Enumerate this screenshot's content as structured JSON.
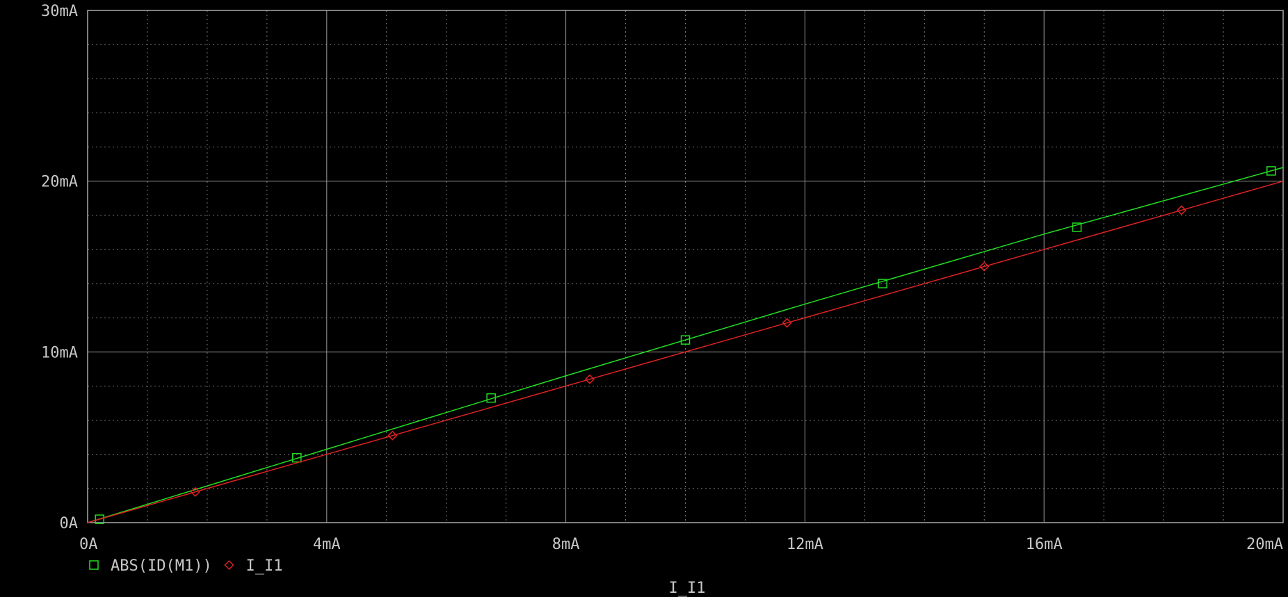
{
  "chart_data": {
    "type": "line",
    "xlabel": "I_I1",
    "ylabel": "",
    "xlim": [
      0,
      20
    ],
    "ylim": [
      0,
      30
    ],
    "x_unit": "mA",
    "y_unit": "mA",
    "x_ticks": [
      {
        "value": 0,
        "label": "0A"
      },
      {
        "value": 4,
        "label": "4mA"
      },
      {
        "value": 8,
        "label": "8mA"
      },
      {
        "value": 12,
        "label": "12mA"
      },
      {
        "value": 16,
        "label": "16mA"
      },
      {
        "value": 20,
        "label": "20mA"
      }
    ],
    "y_ticks": [
      {
        "value": 0,
        "label": "0A"
      },
      {
        "value": 10,
        "label": "10mA"
      },
      {
        "value": 20,
        "label": "20mA"
      },
      {
        "value": 30,
        "label": "30mA"
      }
    ],
    "grid": true,
    "legend_position": "bottom-left",
    "series": [
      {
        "name": "ABS(ID(M1))",
        "color": "#22dd22",
        "marker": "square",
        "x": [
          0,
          4,
          8,
          12,
          16,
          20
        ],
        "y": [
          0,
          4.3,
          8.6,
          12.8,
          16.9,
          20.8
        ],
        "marker_x": [
          0.2,
          3.5,
          6.75,
          10.0,
          13.3,
          16.55,
          19.8
        ],
        "marker_y": [
          0.2,
          3.8,
          7.3,
          10.7,
          14.0,
          17.3,
          20.6
        ]
      },
      {
        "name": "I_I1",
        "color": "#dd2222",
        "marker": "diamond",
        "x": [
          0,
          20
        ],
        "y": [
          0,
          20
        ],
        "marker_x": [
          1.8,
          5.1,
          8.4,
          11.7,
          15.0,
          18.3
        ],
        "marker_y": [
          1.8,
          5.1,
          8.4,
          11.7,
          15.0,
          18.3
        ]
      }
    ]
  },
  "legend": {
    "items": [
      {
        "label": "ABS(ID(M1))"
      },
      {
        "label": "I_I1"
      }
    ]
  }
}
